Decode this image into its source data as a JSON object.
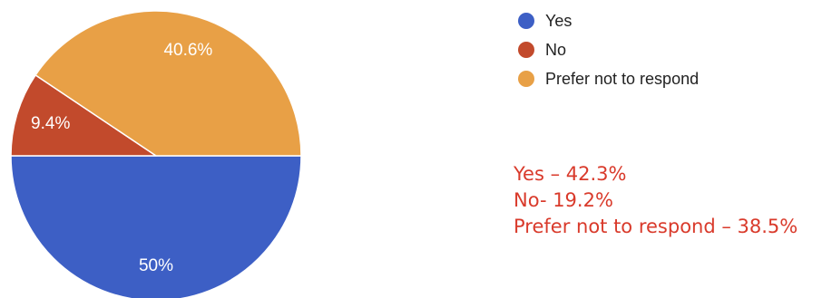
{
  "chart_data": {
    "type": "pie",
    "slices": [
      {
        "name": "Yes",
        "value": 50,
        "label": "50%",
        "color": "#3d5fc5"
      },
      {
        "name": "No",
        "value": 9.4,
        "label": "9.4%",
        "color": "#c24a2c"
      },
      {
        "name": "Prefer not to respond",
        "value": 40.6,
        "label": "40.6%",
        "color": "#e8a046"
      }
    ],
    "legend_position": "top-right"
  },
  "legend": {
    "items": [
      {
        "label": "Yes",
        "color": "#3d5fc5"
      },
      {
        "label": "No",
        "color": "#c24a2c"
      },
      {
        "label": "Prefer not to respond",
        "color": "#e8a046"
      }
    ]
  },
  "annotation": {
    "color": "#d93a2b",
    "lines": [
      "Yes – 42.3%",
      "No- 19.2%",
      "Prefer not to respond – 38.5%"
    ]
  }
}
